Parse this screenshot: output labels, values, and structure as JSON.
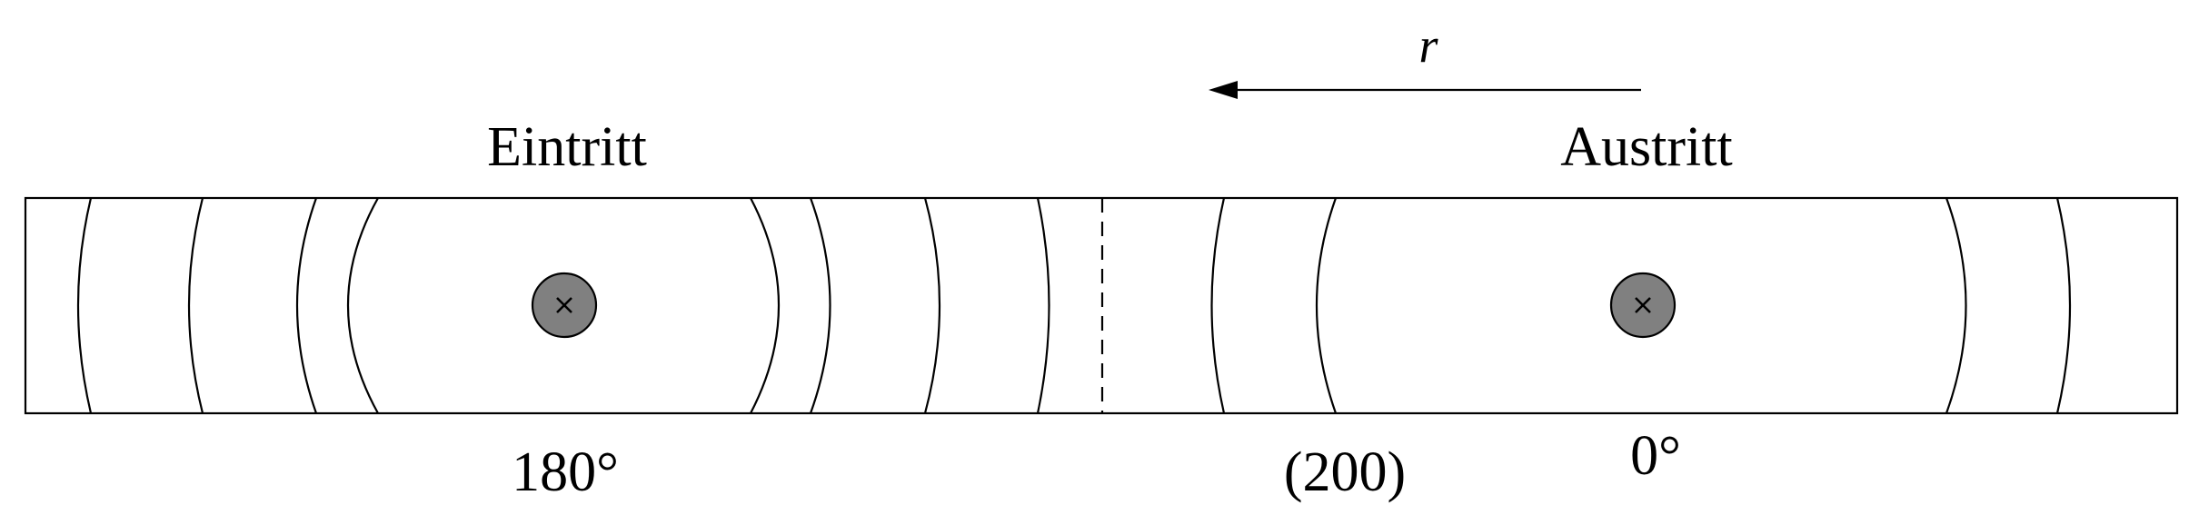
{
  "labels": {
    "direction": "r",
    "entry": "Eintritt",
    "exit": "Austritt",
    "entry_angle": "180°",
    "exit_angle": "0°",
    "reflection": "(200)"
  },
  "colors": {
    "stroke": "#000000",
    "marker_fill": "#808080",
    "background": "#ffffff"
  },
  "icons": {
    "field_into_page": "cross-in-circle-icon"
  }
}
